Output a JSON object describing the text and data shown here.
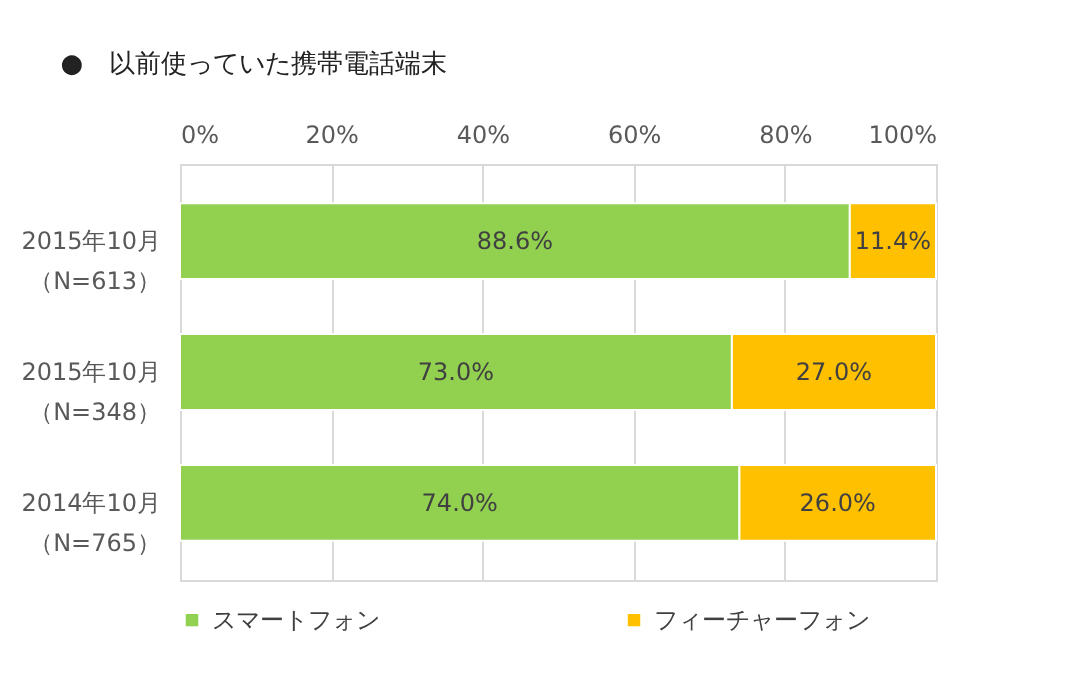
{
  "chart_data": {
    "type": "bar",
    "orientation": "horizontal",
    "stacked": true,
    "title": "●　以前使っていた携帯電話端末",
    "categories": [
      "2015年10月（N=613）",
      "2015年10月（N=348）",
      "2014年10月（N=765）"
    ],
    "series": [
      {
        "name": "スマートフォン",
        "color": "#92d050",
        "values": [
          88.6,
          73.0,
          74.0
        ],
        "value_labels": [
          "88.6%",
          "73.0%",
          "74.0%"
        ]
      },
      {
        "name": "フィーチャーフォン",
        "color": "#ffc000",
        "values": [
          11.4,
          27.0,
          26.0
        ],
        "value_labels": [
          "11.4%",
          "27.0%",
          "26.0%"
        ]
      }
    ],
    "xlim": [
      0,
      100
    ],
    "xticks": [
      {
        "value": 0,
        "label": "0%"
      },
      {
        "value": 20,
        "label": "20%"
      },
      {
        "value": 40,
        "label": "40%"
      },
      {
        "value": 60,
        "label": "60%"
      },
      {
        "value": 80,
        "label": "80%"
      },
      {
        "value": 100,
        "label": "100%"
      }
    ],
    "grid": "x",
    "legend": "bottom"
  }
}
